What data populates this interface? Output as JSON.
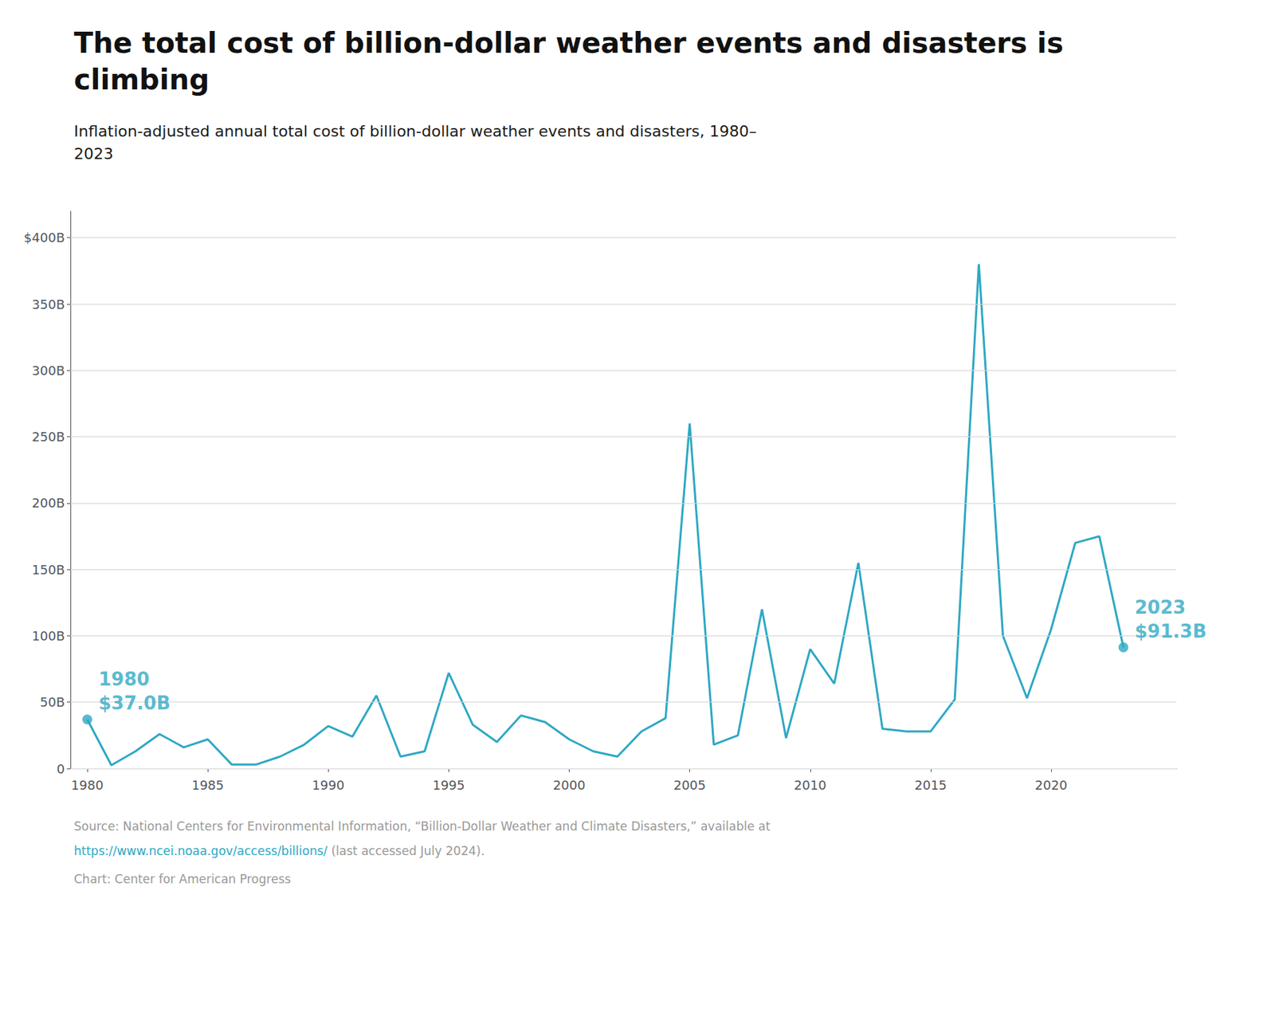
{
  "chart_data": {
    "type": "line",
    "title": "The total cost of billion-dollar weather events and disasters is\nclimbing",
    "subtitle": "Inflation-adjusted annual total cost of billion-dollar weather events and disasters, 1980–\n2023",
    "x": [
      1980,
      1981,
      1982,
      1983,
      1984,
      1985,
      1986,
      1987,
      1988,
      1989,
      1990,
      1991,
      1992,
      1993,
      1994,
      1995,
      1996,
      1997,
      1998,
      1999,
      2000,
      2001,
      2002,
      2003,
      2004,
      2005,
      2006,
      2007,
      2008,
      2009,
      2010,
      2011,
      2012,
      2013,
      2014,
      2015,
      2016,
      2017,
      2018,
      2019,
      2020,
      2021,
      2022,
      2023
    ],
    "values": [
      37.0,
      2.5,
      13.0,
      26.0,
      16.0,
      22.0,
      3.0,
      3.0,
      9.0,
      18.0,
      32.0,
      24.0,
      55.0,
      9.0,
      13.0,
      72.0,
      33.0,
      20.0,
      40.0,
      35.0,
      22.0,
      13.0,
      9.0,
      28.0,
      38.0,
      260.0,
      18.0,
      25.0,
      120.0,
      23.0,
      90.0,
      64.0,
      155.0,
      30.0,
      28.0,
      28.0,
      52.0,
      380.0,
      100.0,
      53.0,
      105.0,
      170.0,
      175.0,
      91.3
    ],
    "color": "#2ea8c4",
    "xlim": [
      1979.3,
      2025.2
    ],
    "xticks": [
      1980,
      1985,
      1990,
      1995,
      2000,
      2005,
      2010,
      2015,
      2020
    ],
    "ylim": [
      0,
      420
    ],
    "yticks": [
      0,
      {
        "value": 50,
        "label": "50B"
      },
      {
        "value": 100,
        "label": "100B"
      },
      {
        "value": 150,
        "label": "150B"
      },
      {
        "value": 200,
        "label": "200B"
      },
      {
        "value": 250,
        "label": "250B"
      },
      {
        "value": 300,
        "label": "300B"
      },
      {
        "value": 350,
        "label": "350B"
      },
      {
        "value": 400,
        "label": "$400B"
      }
    ],
    "grid": true,
    "annotations": [
      {
        "x": 1980,
        "y": 37.0,
        "text": "1980"
      },
      {
        "x": 1980,
        "y": 37.0,
        "text": "$37.0B"
      },
      {
        "x": 2023,
        "y": 91.3,
        "text": "2023"
      },
      {
        "x": 2023,
        "y": 91.3,
        "text": "$91.3B"
      }
    ],
    "source": "Source: National Centers for Environmental Information, “Billion-Dollar Weather and Climate Disasters,” available at",
    "source_url": "https://www.ncei.noaa.gov/access/billions/",
    "source_url_suffix": " (last accessed July 2024).",
    "credit": "Chart: Center for American Progress"
  }
}
